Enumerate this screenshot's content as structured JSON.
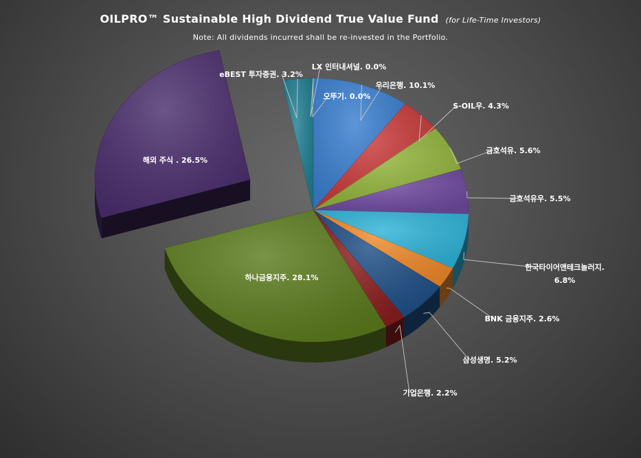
{
  "chart_data": {
    "type": "pie",
    "title": "OILPRO™ Sustainable High Dividend True Value Fund",
    "title_suffix": "(for Life-Time Investors)",
    "subtitle": "Note: All dividends incurred shall be re-invested in the Portfolio.",
    "unit": "%",
    "slices": [
      {
        "label": "우리은행",
        "value": 10.1,
        "color": "#3a7fd0"
      },
      {
        "label": "S-OIL우",
        "value": 4.3,
        "color": "#c93a3a"
      },
      {
        "label": "금호석유",
        "value": 5.6,
        "color": "#93b53c"
      },
      {
        "label": "금호석유우",
        "value": 5.5,
        "color": "#6f4aa0"
      },
      {
        "label": "한국타이어앤테크놀러지",
        "value": 6.8,
        "color": "#2fb3d8"
      },
      {
        "label": "BNK 금융지주",
        "value": 2.6,
        "color": "#ef8a2b"
      },
      {
        "label": "삼성생명",
        "value": 5.2,
        "color": "#1f4f86"
      },
      {
        "label": "기업은행",
        "value": 2.2,
        "color": "#8a1e1e"
      },
      {
        "label": "하나금융지주",
        "value": 28.1,
        "color": "#5c7c1e"
      },
      {
        "label": "해외 주식 ",
        "value": 26.5,
        "color": "#4b2f6e"
      },
      {
        "label": "eBEST 투자증권",
        "value": 3.2,
        "color": "#1f7e92"
      },
      {
        "label": "LX 인터내셔널",
        "value": 0.0,
        "color": "#d26a1a"
      },
      {
        "label": "오뚜기",
        "value": 0.0,
        "color": "#7a8a9a"
      }
    ],
    "legend": "none",
    "data_labels": "category-and-percent"
  }
}
